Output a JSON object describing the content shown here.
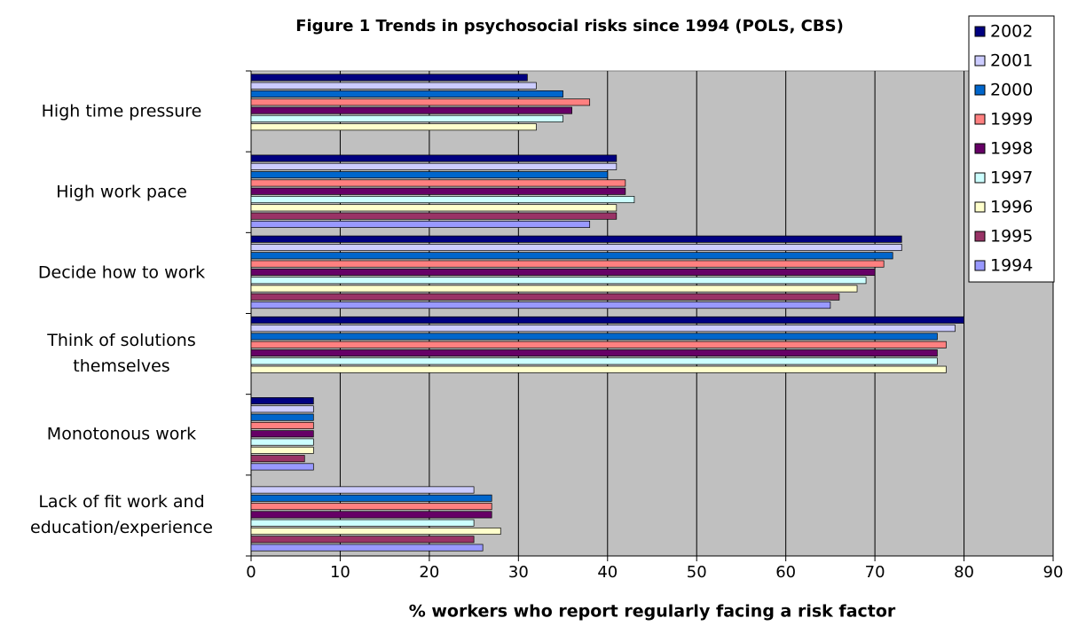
{
  "chart_data": {
    "type": "bar",
    "orientation": "horizontal",
    "title": "Figure 1  Trends in psychosocial risks since 1994 (POLS, CBS)",
    "x_label": "% workers who report regularly facing a risk factor",
    "categories": [
      "High time pressure",
      "High work pace",
      "Decide how to work",
      "Think of solutions themselves",
      "Monotonous work",
      "Lack of fit work and education/experience"
    ],
    "series": [
      {
        "name": "2002",
        "color": "#000080",
        "values": [
          31,
          41,
          73,
          80,
          7,
          null
        ]
      },
      {
        "name": "2001",
        "color": "#ccccff",
        "values": [
          32,
          41,
          73,
          79,
          7,
          25
        ]
      },
      {
        "name": "2000",
        "color": "#0066cc",
        "values": [
          35,
          40,
          72,
          77,
          7,
          27
        ]
      },
      {
        "name": "1999",
        "color": "#ff8080",
        "values": [
          38,
          42,
          71,
          78,
          7,
          27
        ]
      },
      {
        "name": "1998",
        "color": "#660066",
        "values": [
          36,
          42,
          70,
          77,
          7,
          27
        ]
      },
      {
        "name": "1997",
        "color": "#ccffff",
        "values": [
          35,
          43,
          69,
          77,
          7,
          25
        ]
      },
      {
        "name": "1996",
        "color": "#ffffcc",
        "values": [
          32,
          41,
          68,
          78,
          7,
          28
        ]
      },
      {
        "name": "1995",
        "color": "#993366",
        "values": [
          null,
          41,
          66,
          null,
          6,
          25
        ]
      },
      {
        "name": "1994",
        "color": "#9999ff",
        "values": [
          null,
          38,
          65,
          null,
          7,
          26
        ]
      }
    ],
    "xlim": [
      0,
      90
    ],
    "xticks": [
      0,
      10,
      20,
      30,
      40,
      50,
      60,
      70,
      80,
      90
    ],
    "grid": true,
    "legend": "top-right",
    "plot_background": "#c0c0c0"
  }
}
